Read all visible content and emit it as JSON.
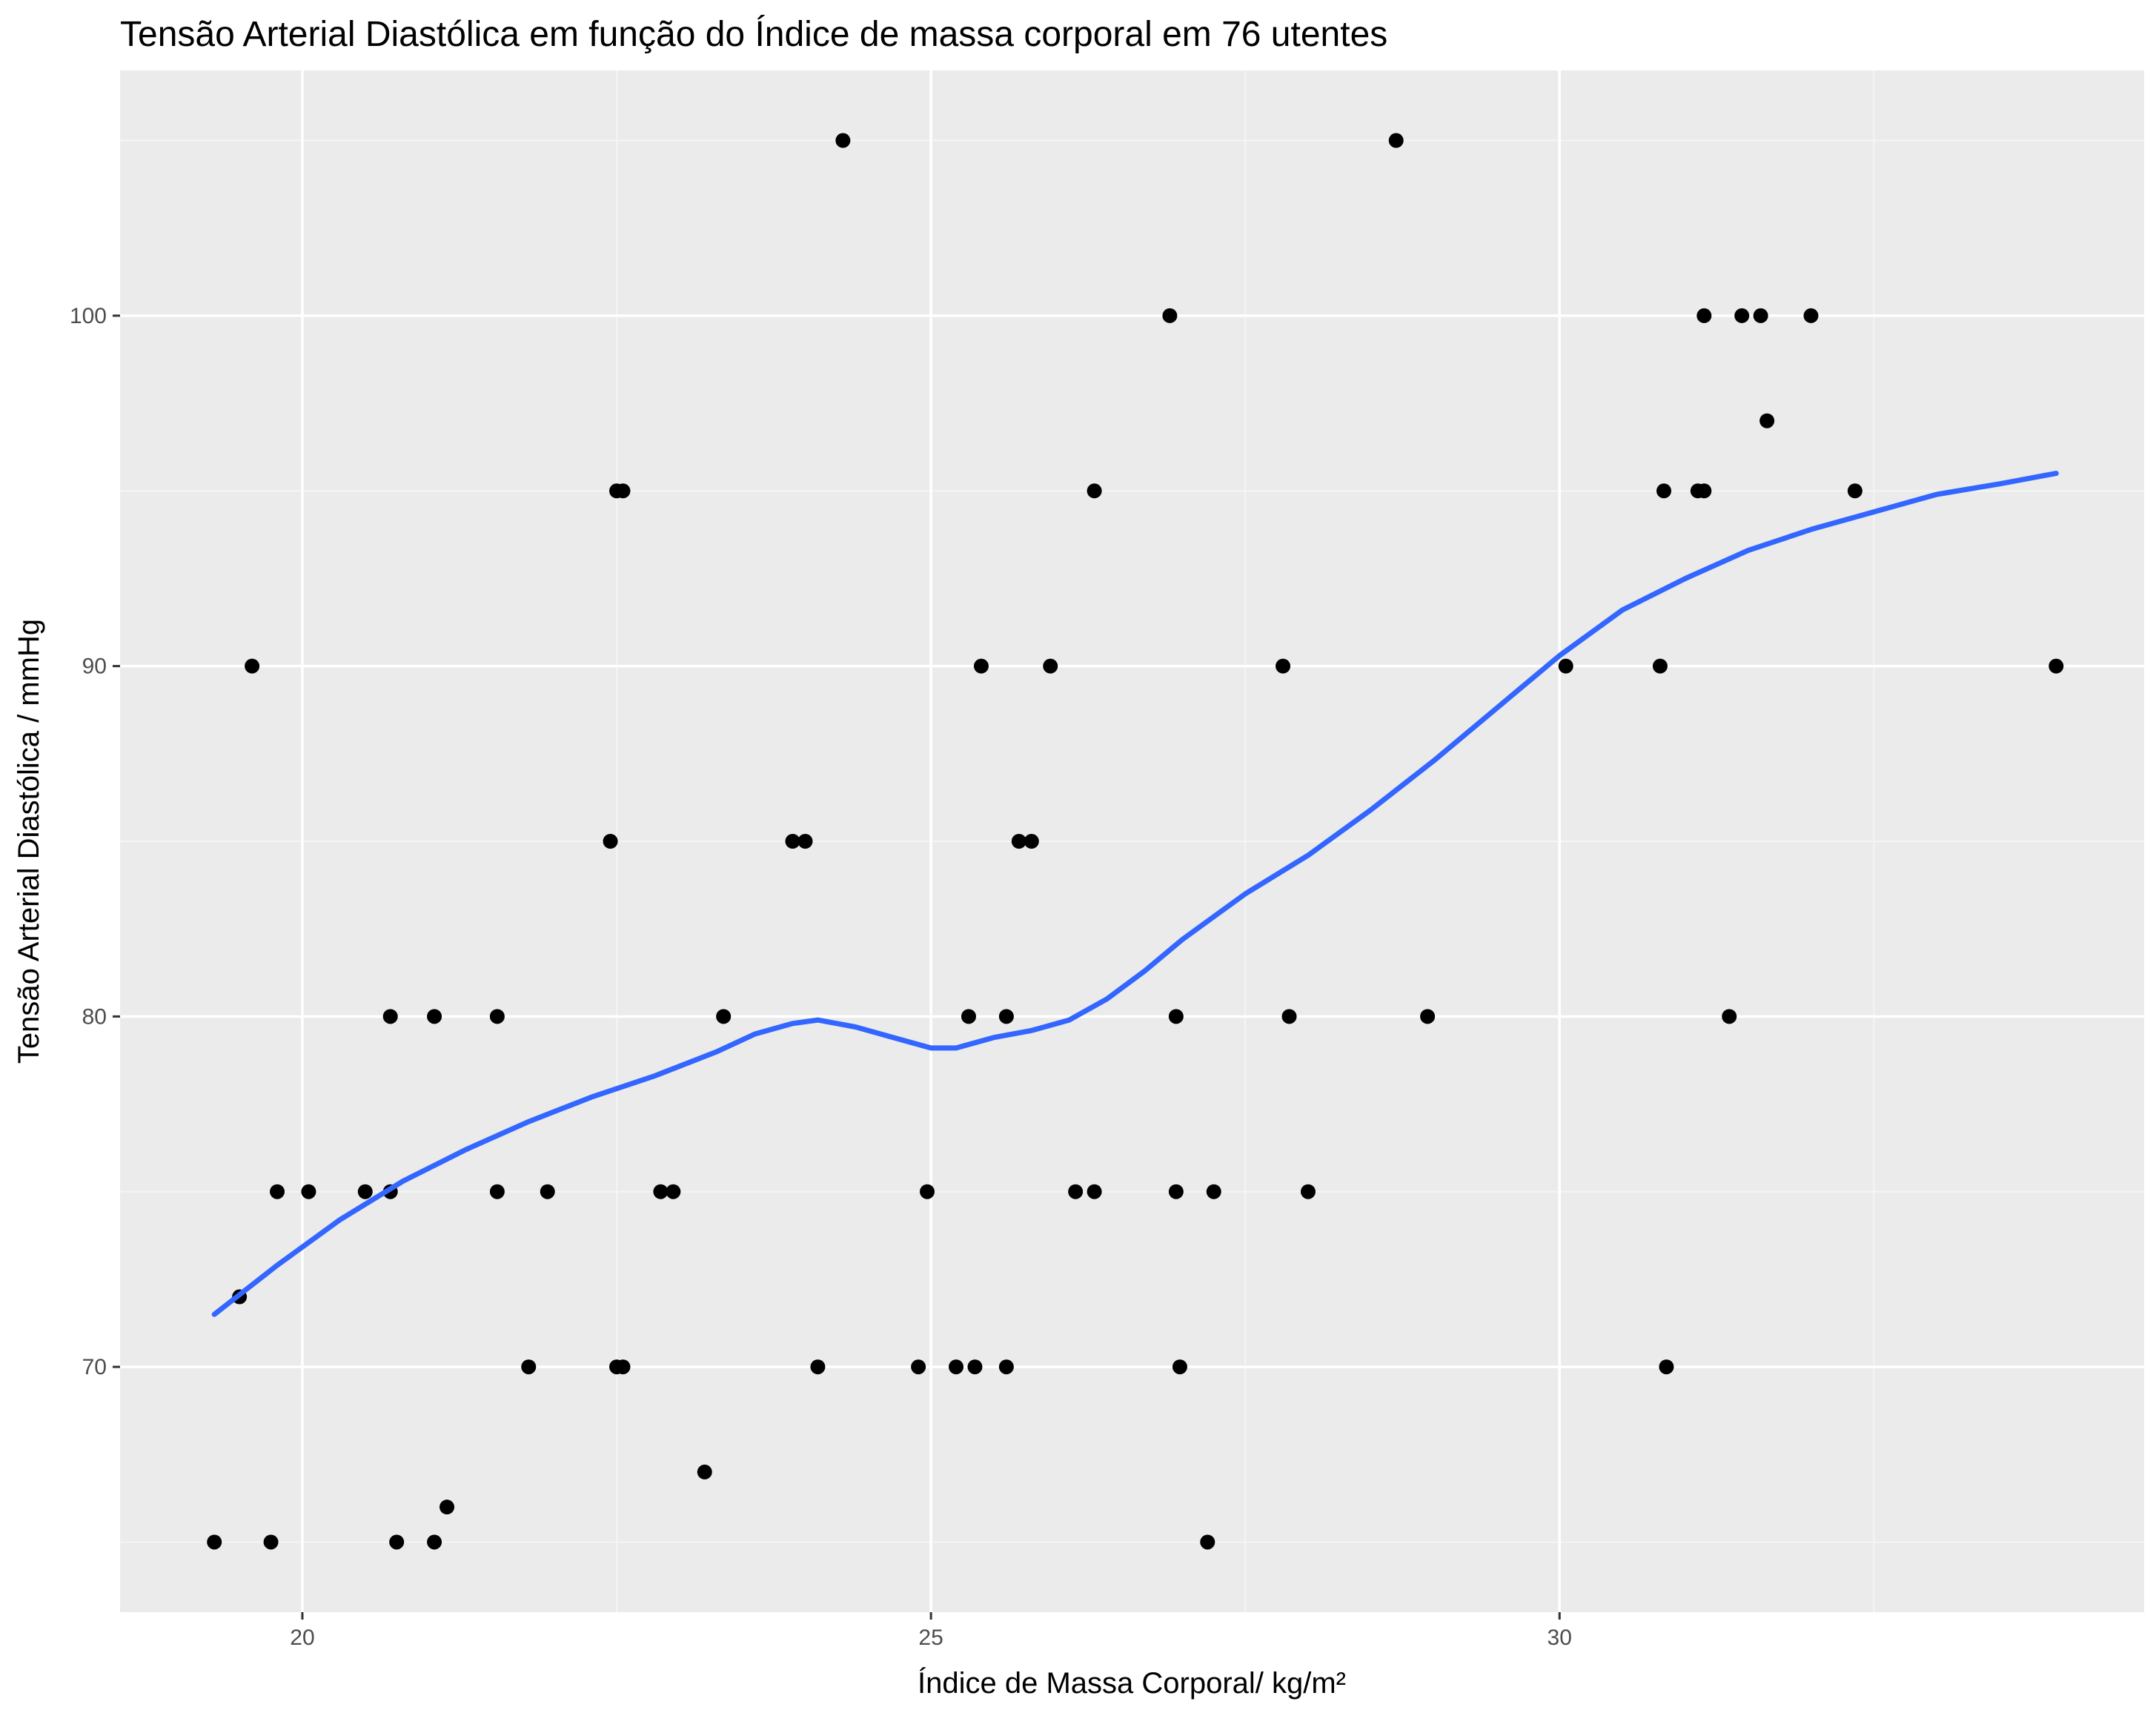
{
  "chart_data": {
    "type": "scatter",
    "title": "Tensão Arterial Diastólica em função do Índice de massa corporal em 76 utentes",
    "xlabel": "Índice de Massa Corporal/ kg/m²",
    "ylabel": "Tensão Arterial Diastólica / mmHg",
    "xlim": [
      18.55,
      34.65
    ],
    "ylim": [
      63.0,
      107.0
    ],
    "x_ticks": [
      20,
      25,
      30
    ],
    "x_tick_labels": [
      "20",
      "25",
      "30"
    ],
    "y_ticks": [
      70,
      80,
      90,
      100
    ],
    "y_tick_labels": [
      "70",
      "80",
      "90",
      "100"
    ],
    "x_minor_ticks": [
      22.5,
      27.5,
      32.5
    ],
    "y_minor_ticks": [
      65,
      75,
      85,
      95,
      105
    ],
    "grid": true,
    "legend": "none",
    "colors": {
      "panel_background": "#ebebeb",
      "grid_major": "#ffffff",
      "grid_minor": "#f5f5f5",
      "points": "#000000",
      "smooth_line": "#3366ff",
      "tick_label": "#4d4d4d",
      "tick_mark": "#333333"
    },
    "points": [
      [
        19.3,
        65
      ],
      [
        19.5,
        72
      ],
      [
        19.6,
        90
      ],
      [
        19.75,
        65
      ],
      [
        19.8,
        75
      ],
      [
        20.05,
        75
      ],
      [
        20.5,
        75
      ],
      [
        20.7,
        80
      ],
      [
        20.7,
        75
      ],
      [
        20.75,
        65
      ],
      [
        21.05,
        80
      ],
      [
        21.05,
        65
      ],
      [
        21.15,
        66
      ],
      [
        21.55,
        80
      ],
      [
        21.55,
        75
      ],
      [
        21.8,
        70
      ],
      [
        21.95,
        75
      ],
      [
        22.45,
        85
      ],
      [
        22.5,
        95
      ],
      [
        22.55,
        95
      ],
      [
        22.5,
        70
      ],
      [
        22.55,
        70
      ],
      [
        22.85,
        75
      ],
      [
        22.95,
        75
      ],
      [
        23.2,
        67
      ],
      [
        23.35,
        80
      ],
      [
        23.9,
        85
      ],
      [
        24.0,
        85
      ],
      [
        24.1,
        70
      ],
      [
        24.3,
        105
      ],
      [
        24.9,
        70
      ],
      [
        24.97,
        75
      ],
      [
        25.2,
        70
      ],
      [
        25.3,
        80
      ],
      [
        25.35,
        70
      ],
      [
        25.4,
        90
      ],
      [
        25.6,
        80
      ],
      [
        25.6,
        70
      ],
      [
        25.7,
        85
      ],
      [
        25.8,
        85
      ],
      [
        25.95,
        90
      ],
      [
        26.15,
        75
      ],
      [
        26.3,
        75
      ],
      [
        26.3,
        95
      ],
      [
        26.9,
        100
      ],
      [
        26.95,
        80
      ],
      [
        26.95,
        75
      ],
      [
        26.98,
        70
      ],
      [
        27.2,
        65
      ],
      [
        27.25,
        75
      ],
      [
        27.8,
        90
      ],
      [
        27.85,
        80
      ],
      [
        28.0,
        75
      ],
      [
        28.7,
        105
      ],
      [
        28.95,
        80
      ],
      [
        30.05,
        90
      ],
      [
        30.8,
        90
      ],
      [
        30.83,
        95
      ],
      [
        30.85,
        70
      ],
      [
        31.1,
        95
      ],
      [
        31.15,
        95
      ],
      [
        31.15,
        100
      ],
      [
        31.35,
        80
      ],
      [
        31.45,
        100
      ],
      [
        31.6,
        100
      ],
      [
        31.65,
        97
      ],
      [
        32.0,
        100
      ],
      [
        32.35,
        95
      ],
      [
        33.95,
        90
      ]
    ],
    "smooth_line": {
      "name": "",
      "x": [
        19.3,
        19.8,
        20.3,
        20.8,
        21.3,
        21.8,
        22.3,
        22.8,
        23.3,
        23.6,
        23.9,
        24.1,
        24.4,
        24.7,
        25.0,
        25.2,
        25.5,
        25.8,
        26.1,
        26.4,
        26.7,
        27.0,
        27.5,
        28.0,
        28.5,
        29.0,
        29.5,
        30.0,
        30.5,
        31.0,
        31.5,
        32.0,
        32.5,
        33.0,
        33.5,
        33.95
      ],
      "y": [
        71.5,
        72.9,
        74.2,
        75.3,
        76.2,
        77.0,
        77.7,
        78.3,
        79.0,
        79.5,
        79.8,
        79.9,
        79.7,
        79.4,
        79.1,
        79.1,
        79.4,
        79.6,
        79.9,
        80.5,
        81.3,
        82.2,
        83.5,
        84.6,
        85.9,
        87.3,
        88.8,
        90.3,
        91.6,
        92.5,
        93.3,
        93.9,
        94.4,
        94.9,
        95.2,
        95.5
      ]
    }
  }
}
